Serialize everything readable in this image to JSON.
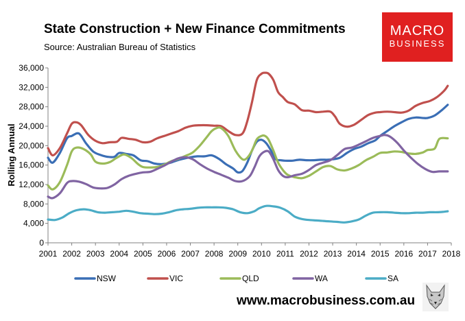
{
  "header": {
    "title": "State Construction + New Finance Commitments",
    "subtitle": "Source: Australian Bureau of Statistics"
  },
  "logo": {
    "line1": "MACRO",
    "line2": "BUSINESS"
  },
  "footer": {
    "url": "www.macrobusiness.com.au",
    "mascot_icon": "wolf-icon"
  },
  "chart_data": {
    "type": "line",
    "title": "State Construction + New Finance Commitments",
    "xlabel": "",
    "ylabel": "Rolling Annual",
    "xlim": [
      2001,
      2018
    ],
    "ylim": [
      0,
      36000
    ],
    "yticks": [
      0,
      4000,
      8000,
      12000,
      16000,
      20000,
      24000,
      28000,
      32000,
      36000
    ],
    "ytick_labels": [
      "0",
      "4,000",
      "8,000",
      "12,000",
      "16,000",
      "20,000",
      "24,000",
      "28,000",
      "32,000",
      "36,000"
    ],
    "xticks": [
      2001,
      2002,
      2003,
      2004,
      2005,
      2006,
      2007,
      2008,
      2009,
      2010,
      2011,
      2012,
      2013,
      2014,
      2015,
      2016,
      2017,
      2018
    ],
    "xtick_labels": [
      "2001",
      "2002",
      "2003",
      "2004",
      "2005",
      "2006",
      "2007",
      "2008",
      "2009",
      "2010",
      "2011",
      "2012",
      "2013",
      "2014",
      "2015",
      "2016",
      "2017",
      "2018"
    ],
    "grid": false,
    "legend_position": "bottom",
    "series": [
      {
        "name": "NSW",
        "color": "#3a6eb5",
        "x": [
          2001,
          2001.2,
          2001.5,
          2001.8,
          2002,
          2002.3,
          2002.6,
          2002.9,
          2003.2,
          2003.5,
          2003.8,
          2004,
          2004.3,
          2004.6,
          2004.9,
          2005.2,
          2005.5,
          2005.8,
          2006.1,
          2006.4,
          2006.7,
          2007,
          2007.3,
          2007.6,
          2007.9,
          2008.2,
          2008.5,
          2008.8,
          2009,
          2009.2,
          2009.4,
          2009.6,
          2009.8,
          2010,
          2010.2,
          2010.4,
          2010.6,
          2010.8,
          2011,
          2011.3,
          2011.6,
          2011.9,
          2012.2,
          2012.5,
          2012.8,
          2013,
          2013.3,
          2013.6,
          2013.9,
          2014.2,
          2014.5,
          2014.8,
          2015,
          2015.3,
          2015.6,
          2015.9,
          2016.2,
          2016.5,
          2016.8,
          2017,
          2017.3,
          2017.6,
          2017.85
        ],
        "values": [
          17500,
          16500,
          18500,
          21500,
          22000,
          22500,
          20500,
          18800,
          18100,
          17700,
          17700,
          18500,
          18300,
          18000,
          17000,
          16800,
          16300,
          16200,
          16400,
          16900,
          17300,
          17600,
          17800,
          17800,
          18000,
          17300,
          16200,
          15300,
          14500,
          14800,
          16500,
          19000,
          20800,
          21200,
          20500,
          19000,
          17200,
          17000,
          16900,
          16900,
          17100,
          17000,
          17000,
          17100,
          17100,
          17200,
          17500,
          18500,
          19300,
          19800,
          20500,
          21100,
          22000,
          23000,
          24000,
          24800,
          25500,
          25800,
          25700,
          25700,
          26200,
          27300,
          28400
        ]
      },
      {
        "name": "VIC",
        "color": "#c0504d",
        "x": [
          2001,
          2001.2,
          2001.5,
          2001.8,
          2002,
          2002.2,
          2002.4,
          2002.7,
          2003,
          2003.3,
          2003.6,
          2003.9,
          2004.1,
          2004.4,
          2004.7,
          2005,
          2005.3,
          2005.6,
          2005.9,
          2006.2,
          2006.5,
          2006.8,
          2007.1,
          2007.4,
          2007.7,
          2008,
          2008.3,
          2008.6,
          2008.9,
          2009.2,
          2009.4,
          2009.6,
          2009.8,
          2010,
          2010.15,
          2010.3,
          2010.5,
          2010.7,
          2010.9,
          2011.1,
          2011.4,
          2011.7,
          2012,
          2012.3,
          2012.6,
          2012.9,
          2013.1,
          2013.3,
          2013.6,
          2013.9,
          2014.2,
          2014.5,
          2014.8,
          2015,
          2015.3,
          2015.6,
          2015.9,
          2016.2,
          2016.5,
          2016.8,
          2017.1,
          2017.4,
          2017.7,
          2017.85
        ],
        "values": [
          19500,
          18000,
          19500,
          22500,
          24500,
          24800,
          24200,
          22200,
          21000,
          20500,
          20700,
          20800,
          21600,
          21400,
          21200,
          20700,
          20800,
          21500,
          22000,
          22500,
          23000,
          23700,
          24100,
          24200,
          24200,
          24100,
          24000,
          23000,
          22200,
          22500,
          25000,
          29000,
          33500,
          34800,
          35000,
          34800,
          33500,
          31000,
          30000,
          29000,
          28500,
          27300,
          27200,
          26900,
          27000,
          27000,
          26000,
          24500,
          23900,
          24300,
          25300,
          26300,
          26800,
          26900,
          27000,
          26900,
          26800,
          27200,
          28200,
          28800,
          29200,
          30000,
          31300,
          32300
        ]
      },
      {
        "name": "QLD",
        "color": "#9bbb59",
        "x": [
          2001,
          2001.2,
          2001.5,
          2001.8,
          2002,
          2002.2,
          2002.5,
          2002.8,
          2003,
          2003.3,
          2003.6,
          2003.9,
          2004.2,
          2004.5,
          2004.8,
          2005,
          2005.3,
          2005.6,
          2005.9,
          2006.2,
          2006.5,
          2006.8,
          2007.1,
          2007.4,
          2007.7,
          2007.9,
          2008.1,
          2008.3,
          2008.6,
          2008.9,
          2009.2,
          2009.4,
          2009.6,
          2009.8,
          2010,
          2010.15,
          2010.3,
          2010.5,
          2010.7,
          2010.9,
          2011.1,
          2011.4,
          2011.7,
          2012,
          2012.3,
          2012.6,
          2012.9,
          2013.2,
          2013.5,
          2013.8,
          2014.1,
          2014.4,
          2014.7,
          2015,
          2015.3,
          2015.6,
          2015.9,
          2016.2,
          2016.5,
          2016.8,
          2017,
          2017.3,
          2017.5,
          2017.85
        ],
        "values": [
          11800,
          11000,
          12500,
          16000,
          18800,
          19600,
          19300,
          18200,
          16700,
          16300,
          16600,
          17500,
          18200,
          17500,
          16200,
          15600,
          15500,
          15600,
          16100,
          16800,
          17300,
          17900,
          18600,
          20000,
          21800,
          23000,
          23600,
          23600,
          22000,
          19000,
          17200,
          17500,
          19000,
          21300,
          22000,
          22000,
          21200,
          19000,
          16500,
          15000,
          14000,
          13500,
          13300,
          13800,
          14700,
          15600,
          15800,
          15100,
          14900,
          15300,
          16000,
          17000,
          17700,
          18500,
          18600,
          18800,
          18700,
          18400,
          18300,
          18600,
          19100,
          19400,
          21400,
          21500
        ]
      },
      {
        "name": "WA",
        "color": "#8064a2",
        "x": [
          2001,
          2001.2,
          2001.5,
          2001.8,
          2002,
          2002.3,
          2002.6,
          2002.9,
          2003.2,
          2003.5,
          2003.8,
          2004.1,
          2004.4,
          2004.7,
          2005,
          2005.3,
          2005.6,
          2005.9,
          2006.2,
          2006.5,
          2006.8,
          2007.1,
          2007.4,
          2007.7,
          2008,
          2008.3,
          2008.6,
          2008.9,
          2009.2,
          2009.5,
          2009.7,
          2009.9,
          2010.1,
          2010.3,
          2010.5,
          2010.7,
          2010.9,
          2011.1,
          2011.4,
          2011.7,
          2012,
          2012.3,
          2012.6,
          2012.9,
          2013.2,
          2013.5,
          2013.8,
          2014.1,
          2014.4,
          2014.7,
          2015,
          2015.2,
          2015.4,
          2015.7,
          2016,
          2016.3,
          2016.6,
          2016.9,
          2017.2,
          2017.5,
          2017.85
        ],
        "values": [
          9500,
          9200,
          10200,
          12300,
          12700,
          12600,
          12100,
          11400,
          11200,
          11300,
          12000,
          13100,
          13800,
          14200,
          14500,
          14600,
          15200,
          15900,
          16700,
          17400,
          17600,
          17200,
          16200,
          15300,
          14600,
          14000,
          13400,
          12700,
          12700,
          13700,
          15500,
          17700,
          18700,
          18800,
          17200,
          15000,
          13800,
          13500,
          13900,
          14200,
          15000,
          16000,
          16500,
          17000,
          18100,
          19300,
          19600,
          20200,
          20900,
          21600,
          22000,
          22200,
          21900,
          20700,
          19000,
          17500,
          16200,
          15200,
          14600,
          14700,
          14700
        ]
      },
      {
        "name": "SA",
        "color": "#4bacc6",
        "x": [
          2001,
          2001.3,
          2001.6,
          2001.9,
          2002.2,
          2002.5,
          2002.8,
          2003.1,
          2003.4,
          2003.7,
          2004,
          2004.3,
          2004.6,
          2004.9,
          2005.2,
          2005.5,
          2005.8,
          2006.1,
          2006.4,
          2006.7,
          2007,
          2007.3,
          2007.6,
          2007.9,
          2008.2,
          2008.5,
          2008.8,
          2009.1,
          2009.4,
          2009.7,
          2009.9,
          2010.2,
          2010.5,
          2010.8,
          2011.1,
          2011.4,
          2011.7,
          2012,
          2012.3,
          2012.6,
          2012.9,
          2013.2,
          2013.5,
          2013.8,
          2014.1,
          2014.4,
          2014.7,
          2015,
          2015.3,
          2015.6,
          2015.9,
          2016.2,
          2016.5,
          2016.8,
          2017.1,
          2017.4,
          2017.7,
          2017.85
        ],
        "values": [
          4800,
          4700,
          5200,
          6100,
          6700,
          6900,
          6700,
          6300,
          6200,
          6300,
          6400,
          6600,
          6400,
          6100,
          6000,
          5900,
          6000,
          6300,
          6700,
          6900,
          7000,
          7200,
          7300,
          7300,
          7300,
          7200,
          6900,
          6300,
          6100,
          6500,
          7100,
          7600,
          7500,
          7200,
          6500,
          5400,
          4900,
          4700,
          4600,
          4500,
          4400,
          4300,
          4200,
          4400,
          4800,
          5600,
          6200,
          6300,
          6300,
          6200,
          6100,
          6100,
          6200,
          6200,
          6300,
          6300,
          6400,
          6500
        ]
      }
    ]
  }
}
